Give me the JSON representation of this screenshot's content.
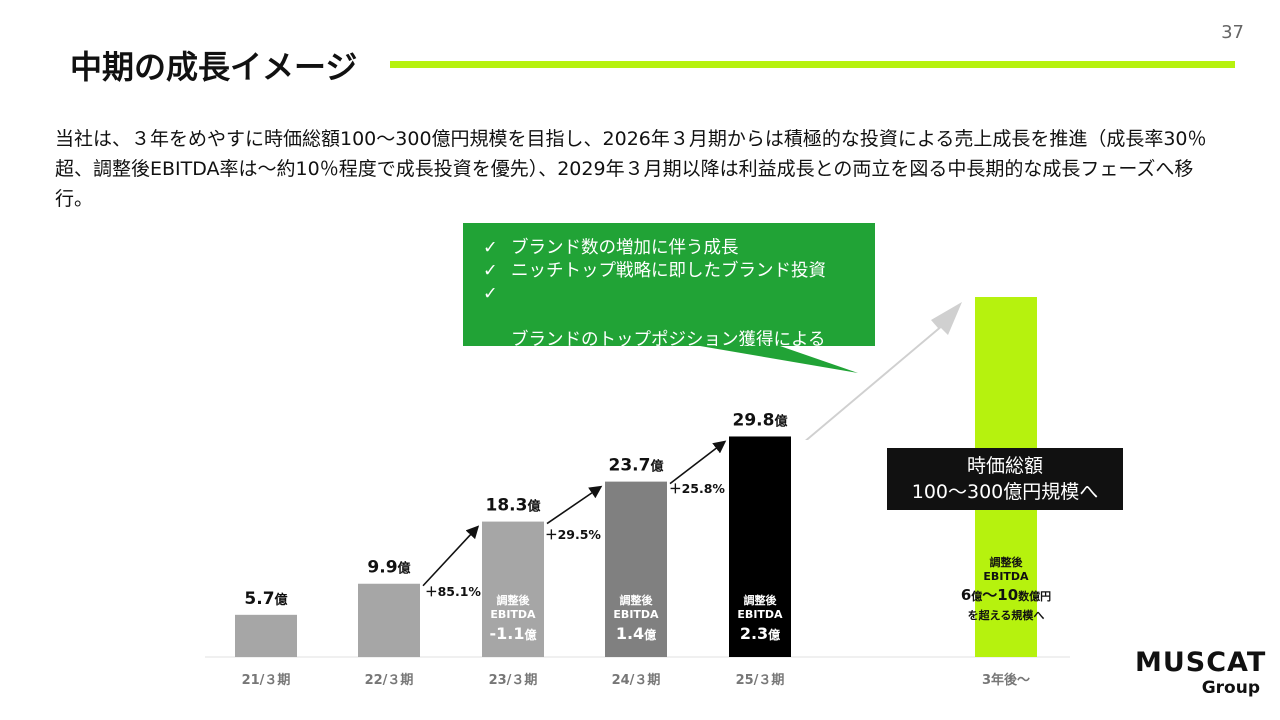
{
  "page_number": "37",
  "title": "中期の成長イメージ",
  "intro_text": "当社は、３年をめやすに時価総額100〜300億円規模を目指し、2026年３月期からは積極的な投資による売上成長を推進（成長率30％超、調整後EBITDA率は〜約10％程度で成長投資を優先）、2029年３月期以降は利益成長との両立を図る中長期的な成長フェーズへ移行。",
  "callout": {
    "check_mark": "✓",
    "items": [
      "ブランド数の増加に伴う成長",
      "ニッチトップ戦略に即したブランド投資",
      "ブランドのトップポジション獲得による\nオーガニック成長"
    ]
  },
  "target_box": {
    "line1": "時価総額",
    "line2": "100〜300億円規模へ"
  },
  "logo": {
    "main": "MUSCAT",
    "sub": "Group"
  },
  "colors": {
    "accent_green": "#b6f20e",
    "callout_green": "#21a336",
    "title_bar": "#b6f20e"
  },
  "chart_data": {
    "type": "bar",
    "categories": [
      "21/３期",
      "22/３期",
      "23/３期",
      "24/３期",
      "25/３期",
      "3年後〜"
    ],
    "unit": "億",
    "values": [
      5.7,
      9.9,
      18.3,
      23.7,
      29.8,
      null
    ],
    "value_labels": [
      "5.7",
      "9.9",
      "18.3",
      "23.7",
      "29.8",
      ""
    ],
    "bar_colors": [
      "#a6a6a6",
      "#a6a6a6",
      "#a6a6a6",
      "#808080",
      "#000000",
      "#b6f20e"
    ],
    "growth_rates": [
      {
        "from": 1,
        "to": 2,
        "label": "＋85.1%"
      },
      {
        "from": 2,
        "to": 3,
        "label": "＋29.5%"
      },
      {
        "from": 3,
        "to": 4,
        "label": "＋25.8%"
      }
    ],
    "ebitda": [
      null,
      null,
      {
        "title": "調整後",
        "label": "EBITDA",
        "value": "-1.1",
        "unit": "億"
      },
      {
        "title": "調整後",
        "label": "EBITDA",
        "value": "1.4",
        "unit": "億"
      },
      {
        "title": "調整後",
        "label": "EBITDA",
        "value": "2.3",
        "unit": "億"
      },
      null
    ],
    "future_note": {
      "title": "調整後",
      "label": "EBITDA",
      "value_a": "6",
      "unit_a": "億",
      "sep": "〜",
      "value_b": "10",
      "unit_b": "数億円",
      "line3": "を超える規模へ"
    }
  }
}
